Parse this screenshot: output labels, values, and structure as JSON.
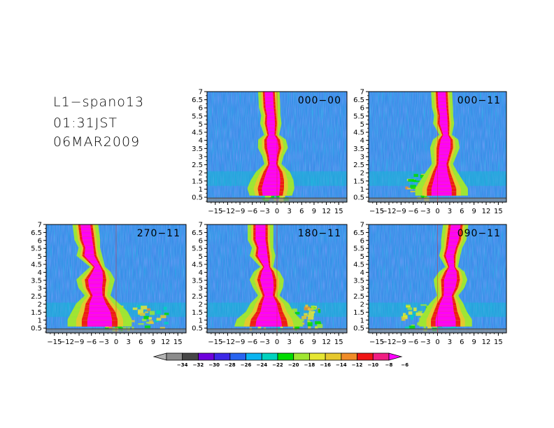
{
  "header": {
    "station": "L1−spano13",
    "time": "01:31JST",
    "date": "06MAR2009"
  },
  "chart_data": [
    {
      "type": "heatmap",
      "label": "000−00",
      "x_ticks": [
        "−15",
        "−12",
        "−9",
        "−6",
        "−3",
        "0",
        "3",
        "6",
        "9",
        "12",
        "15"
      ],
      "y_ticks": [
        "0.5",
        "1",
        "1.5",
        "2",
        "2.5",
        "3",
        "3.5",
        "4",
        "4.5",
        "5",
        "5.5",
        "6",
        "6.5",
        "7"
      ],
      "xlim": [
        -17,
        17
      ],
      "ylim": [
        0.2,
        7.0
      ],
      "core": [
        {
          "y": 0.6,
          "center": -1.5,
          "half_width": 2.0
        },
        {
          "y": 1.0,
          "center": -1.5,
          "half_width": 2.2
        },
        {
          "y": 1.5,
          "center": -1.2,
          "half_width": 2.0
        },
        {
          "y": 2.0,
          "center": -1.0,
          "half_width": 1.6
        },
        {
          "y": 2.5,
          "center": -1.0,
          "half_width": 0.8
        },
        {
          "y": 3.0,
          "center": -1.0,
          "half_width": 1.0
        },
        {
          "y": 3.5,
          "center": -1.0,
          "half_width": 1.4
        },
        {
          "y": 4.0,
          "center": -1.2,
          "half_width": 1.3
        },
        {
          "y": 4.3,
          "center": -1.3,
          "half_width": 0.7
        },
        {
          "y": 5.0,
          "center": -1.5,
          "half_width": 1.0
        },
        {
          "y": 5.5,
          "center": -1.5,
          "half_width": 0.9
        },
        {
          "y": 6.0,
          "center": -1.8,
          "half_width": 1.0
        },
        {
          "y": 7.0,
          "center": -2.0,
          "half_width": 1.0
        }
      ],
      "side_echo": {
        "y_min": 0.4,
        "y_max": 1.7,
        "x_min": -4,
        "x_max": 2,
        "level": 0.6
      }
    },
    {
      "type": "heatmap",
      "label": "000−11",
      "x_ticks": [
        "−15",
        "−12",
        "−9",
        "−6",
        "−3",
        "0",
        "3",
        "6",
        "9",
        "12",
        "15"
      ],
      "y_ticks": [
        "0.5",
        "1",
        "1.5",
        "2",
        "2.5",
        "3",
        "3.5",
        "4",
        "4.5",
        "5",
        "5.5",
        "6",
        "6.5",
        "7"
      ],
      "xlim": [
        -17,
        17
      ],
      "ylim": [
        0.2,
        7.0
      ],
      "core": [
        {
          "y": 0.6,
          "center": 1.0,
          "half_width": 2.5
        },
        {
          "y": 1.0,
          "center": 1.0,
          "half_width": 2.5
        },
        {
          "y": 1.5,
          "center": 1.0,
          "half_width": 2.0
        },
        {
          "y": 2.0,
          "center": 1.0,
          "half_width": 1.5
        },
        {
          "y": 2.5,
          "center": 1.2,
          "half_width": 1.0
        },
        {
          "y": 3.0,
          "center": 1.5,
          "half_width": 1.2
        },
        {
          "y": 3.5,
          "center": 1.8,
          "half_width": 1.4
        },
        {
          "y": 4.0,
          "center": 2.0,
          "half_width": 1.2
        },
        {
          "y": 4.3,
          "center": 2.0,
          "half_width": 0.6
        },
        {
          "y": 5.0,
          "center": 1.5,
          "half_width": 1.0
        },
        {
          "y": 5.5,
          "center": 1.5,
          "half_width": 0.9
        },
        {
          "y": 6.0,
          "center": 1.2,
          "half_width": 1.0
        },
        {
          "y": 7.0,
          "center": 1.0,
          "half_width": 1.0
        }
      ],
      "side_echo": {
        "y_min": 0.5,
        "y_max": 2.0,
        "x_min": -8,
        "x_max": 5,
        "level": 0.7
      }
    },
    {
      "type": "heatmap",
      "label": "270−11",
      "x_ticks": [
        "−15",
        "−12",
        "−9",
        "−6",
        "−3",
        "0",
        "3",
        "6",
        "9",
        "12",
        "15"
      ],
      "y_ticks": [
        "0.5",
        "1",
        "1.5",
        "2",
        "2.5",
        "3",
        "3.5",
        "4",
        "4.5",
        "5",
        "5.5",
        "6",
        "6.5",
        "7"
      ],
      "xlim": [
        -17,
        17
      ],
      "ylim": [
        0.2,
        7.0
      ],
      "core": [
        {
          "y": 0.6,
          "center": -4.0,
          "half_width": 3.0
        },
        {
          "y": 1.0,
          "center": -4.0,
          "half_width": 3.0
        },
        {
          "y": 1.5,
          "center": -4.0,
          "half_width": 2.6
        },
        {
          "y": 2.0,
          "center": -4.5,
          "half_width": 2.0
        },
        {
          "y": 2.5,
          "center": -4.5,
          "half_width": 1.2
        },
        {
          "y": 3.0,
          "center": -5.0,
          "half_width": 1.6
        },
        {
          "y": 3.5,
          "center": -5.0,
          "half_width": 1.8
        },
        {
          "y": 4.0,
          "center": -4.5,
          "half_width": 1.2
        },
        {
          "y": 4.3,
          "center": -4.5,
          "half_width": 0.7
        },
        {
          "y": 5.0,
          "center": -6.5,
          "half_width": 1.2
        },
        {
          "y": 5.5,
          "center": -6.5,
          "half_width": 1.0
        },
        {
          "y": 6.0,
          "center": -7.0,
          "half_width": 1.2
        },
        {
          "y": 7.0,
          "center": -7.5,
          "half_width": 1.2
        }
      ],
      "side_echo": {
        "y_min": 0.5,
        "y_max": 2.0,
        "x_min": -9,
        "x_max": 12,
        "level": 0.7
      }
    },
    {
      "type": "heatmap",
      "label": "180−11",
      "x_ticks": [
        "−15",
        "−12",
        "−9",
        "−6",
        "−3",
        "0",
        "3",
        "6",
        "9",
        "12",
        "15"
      ],
      "y_ticks": [
        "0.5",
        "1",
        "1.5",
        "2",
        "2.5",
        "3",
        "3.5",
        "4",
        "4.5",
        "5",
        "5.5",
        "6",
        "6.5",
        "7"
      ],
      "xlim": [
        -17,
        17
      ],
      "ylim": [
        0.2,
        7.0
      ],
      "core": [
        {
          "y": 0.6,
          "center": -2.0,
          "half_width": 3.2
        },
        {
          "y": 1.0,
          "center": -2.0,
          "half_width": 3.0
        },
        {
          "y": 1.5,
          "center": -1.8,
          "half_width": 2.2
        },
        {
          "y": 2.0,
          "center": -1.8,
          "half_width": 1.8
        },
        {
          "y": 2.5,
          "center": -2.0,
          "half_width": 1.0
        },
        {
          "y": 3.0,
          "center": -2.2,
          "half_width": 1.4
        },
        {
          "y": 3.5,
          "center": -2.5,
          "half_width": 1.6
        },
        {
          "y": 4.0,
          "center": -2.5,
          "half_width": 1.2
        },
        {
          "y": 4.3,
          "center": -2.5,
          "half_width": 0.6
        },
        {
          "y": 5.0,
          "center": -3.5,
          "half_width": 1.2
        },
        {
          "y": 5.5,
          "center": -3.5,
          "half_width": 1.0
        },
        {
          "y": 6.0,
          "center": -4.0,
          "half_width": 1.2
        },
        {
          "y": 7.0,
          "center": -4.0,
          "half_width": 1.2
        }
      ],
      "side_echo": {
        "y_min": 0.5,
        "y_max": 2.0,
        "x_min": -7,
        "x_max": 10,
        "level": 0.7
      }
    },
    {
      "type": "heatmap",
      "label": "090−11",
      "x_ticks": [
        "−15",
        "−12",
        "−9",
        "−6",
        "−3",
        "0",
        "3",
        "6",
        "9",
        "12",
        "15"
      ],
      "y_ticks": [
        "0.5",
        "1",
        "1.5",
        "2",
        "2.5",
        "3",
        "3.5",
        "4",
        "4.5",
        "5",
        "5.5",
        "6",
        "6.5",
        "7"
      ],
      "xlim": [
        -17,
        17
      ],
      "ylim": [
        0.2,
        7.0
      ],
      "core": [
        {
          "y": 0.6,
          "center": 2.0,
          "half_width": 2.5
        },
        {
          "y": 1.0,
          "center": 2.0,
          "half_width": 2.5
        },
        {
          "y": 1.5,
          "center": 2.0,
          "half_width": 2.0
        },
        {
          "y": 2.0,
          "center": 2.2,
          "half_width": 1.6
        },
        {
          "y": 2.5,
          "center": 2.5,
          "half_width": 1.0
        },
        {
          "y": 3.0,
          "center": 3.0,
          "half_width": 1.4
        },
        {
          "y": 3.5,
          "center": 3.2,
          "half_width": 1.6
        },
        {
          "y": 4.0,
          "center": 3.5,
          "half_width": 1.2
        },
        {
          "y": 4.3,
          "center": 3.5,
          "half_width": 0.6
        },
        {
          "y": 5.0,
          "center": 3.0,
          "half_width": 1.0
        },
        {
          "y": 5.5,
          "center": 3.5,
          "half_width": 1.0
        },
        {
          "y": 6.0,
          "center": 4.0,
          "half_width": 1.2
        },
        {
          "y": 7.0,
          "center": 4.5,
          "half_width": 1.2
        }
      ],
      "side_echo": {
        "y_min": 0.5,
        "y_max": 2.0,
        "x_min": -9,
        "x_max": 5,
        "level": 0.6
      }
    }
  ],
  "colorbar": {
    "levels": [
      "−34",
      "−32",
      "−30",
      "−28",
      "−26",
      "−24",
      "−22",
      "−20",
      "−18",
      "−16",
      "−14",
      "−12",
      "−10",
      "−8",
      "−6"
    ],
    "colors": [
      "#b4b4b4",
      "#8c8c8c",
      "#464646",
      "#6e00dc",
      "#3c28e6",
      "#2864f0",
      "#0ab4f0",
      "#00d2be",
      "#00dc00",
      "#a0e632",
      "#e6e632",
      "#e6c82e",
      "#f08c28",
      "#f01414",
      "#f01e82",
      "#ff00ff"
    ]
  }
}
